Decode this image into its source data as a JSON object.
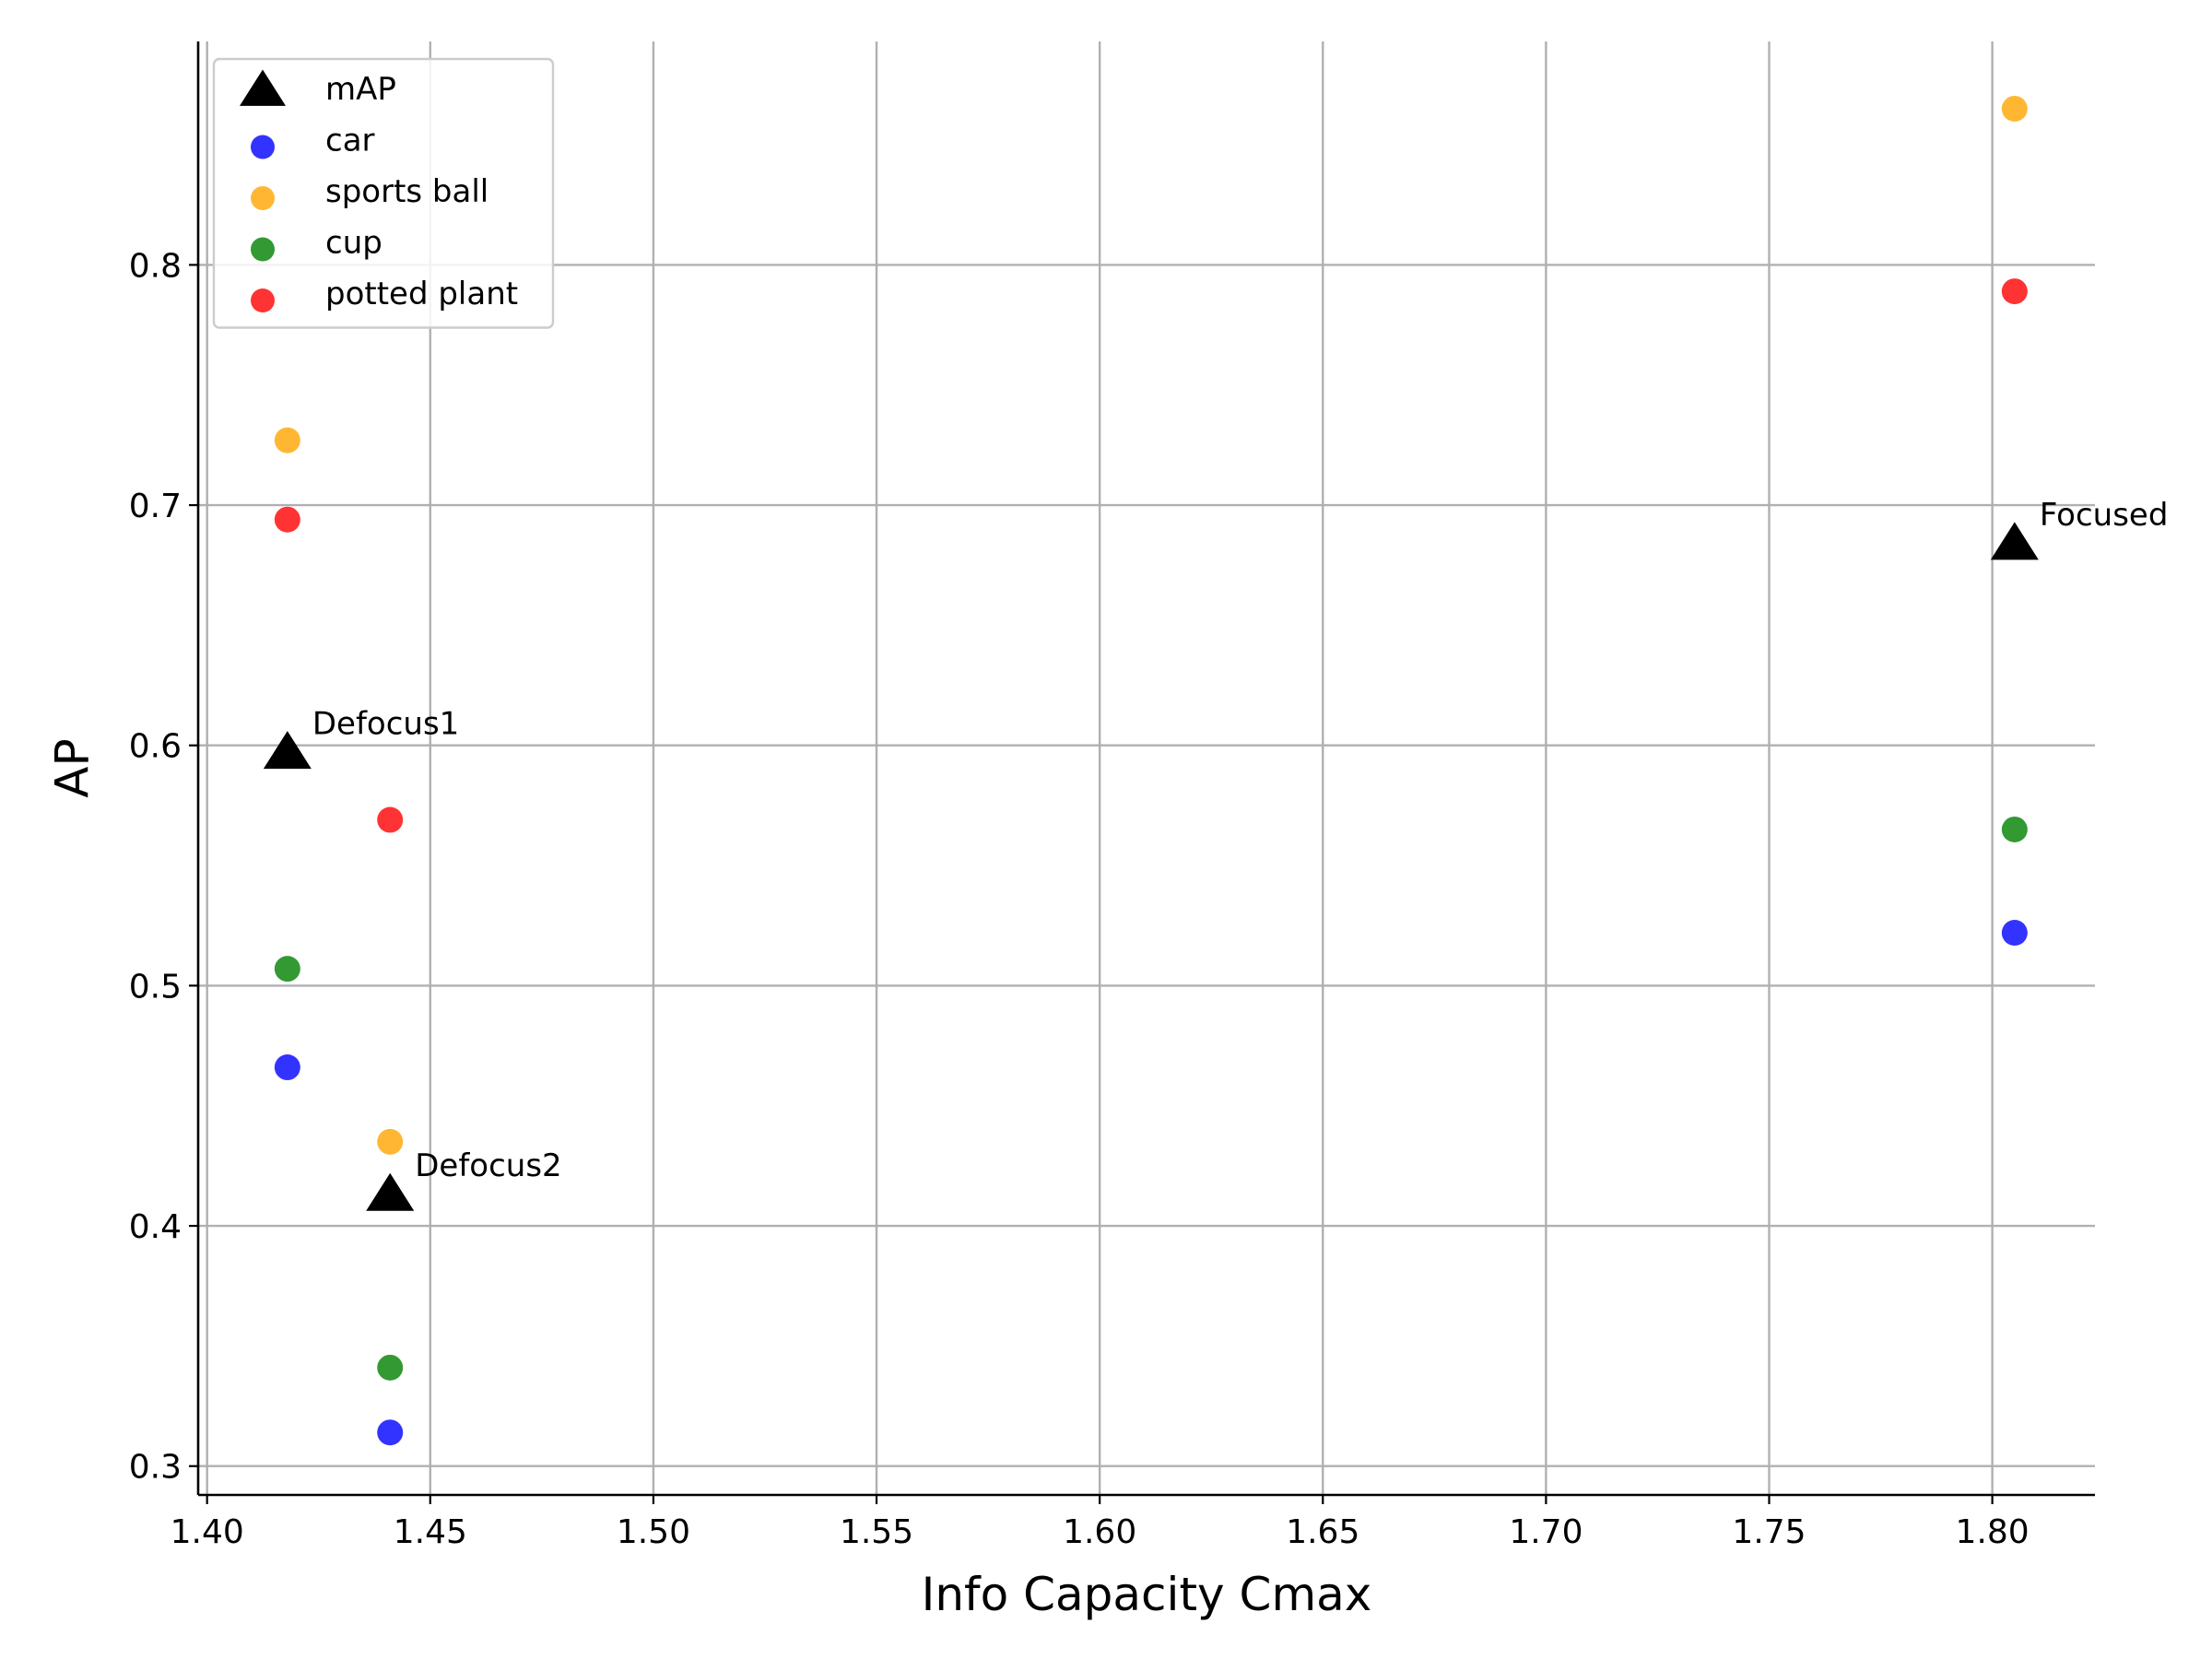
{
  "chart_data": {
    "type": "scatter",
    "title": "",
    "xlabel": "Info Capacity Cmax",
    "ylabel": "AP",
    "xlim": [
      1.398,
      1.823
    ],
    "ylim": [
      0.288,
      0.893
    ],
    "xticks": [
      "1.40",
      "1.45",
      "1.50",
      "1.55",
      "1.60",
      "1.65",
      "1.70",
      "1.75",
      "1.80"
    ],
    "yticks": [
      "0.3",
      "0.4",
      "0.5",
      "0.6",
      "0.7",
      "0.8"
    ],
    "grid": true,
    "legend_position": "top-left",
    "series": [
      {
        "name": "mAP",
        "marker": "triangle",
        "color": "#000000",
        "points": [
          {
            "x": 1.418,
            "y": 0.597
          },
          {
            "x": 1.441,
            "y": 0.413
          },
          {
            "x": 1.805,
            "y": 0.684
          }
        ]
      },
      {
        "name": "car",
        "marker": "circle",
        "color": "#0000ff",
        "points": [
          {
            "x": 1.418,
            "y": 0.466
          },
          {
            "x": 1.441,
            "y": 0.314
          },
          {
            "x": 1.805,
            "y": 0.522
          }
        ]
      },
      {
        "name": "sports ball",
        "marker": "circle",
        "color": "#ffa500",
        "points": [
          {
            "x": 1.418,
            "y": 0.727
          },
          {
            "x": 1.441,
            "y": 0.435
          },
          {
            "x": 1.805,
            "y": 0.865
          }
        ]
      },
      {
        "name": "cup",
        "marker": "circle",
        "color": "#008000",
        "points": [
          {
            "x": 1.418,
            "y": 0.507
          },
          {
            "x": 1.441,
            "y": 0.341
          },
          {
            "x": 1.805,
            "y": 0.565
          }
        ]
      },
      {
        "name": "potted plant",
        "marker": "circle",
        "color": "#ff0000",
        "points": [
          {
            "x": 1.418,
            "y": 0.694
          },
          {
            "x": 1.441,
            "y": 0.569
          },
          {
            "x": 1.805,
            "y": 0.789
          }
        ]
      }
    ],
    "annotations": [
      {
        "text": "Defocus1",
        "x": 1.418,
        "y": 0.597
      },
      {
        "text": "Defocus2",
        "x": 1.441,
        "y": 0.413
      },
      {
        "text": "Focused",
        "x": 1.805,
        "y": 0.684
      }
    ]
  }
}
